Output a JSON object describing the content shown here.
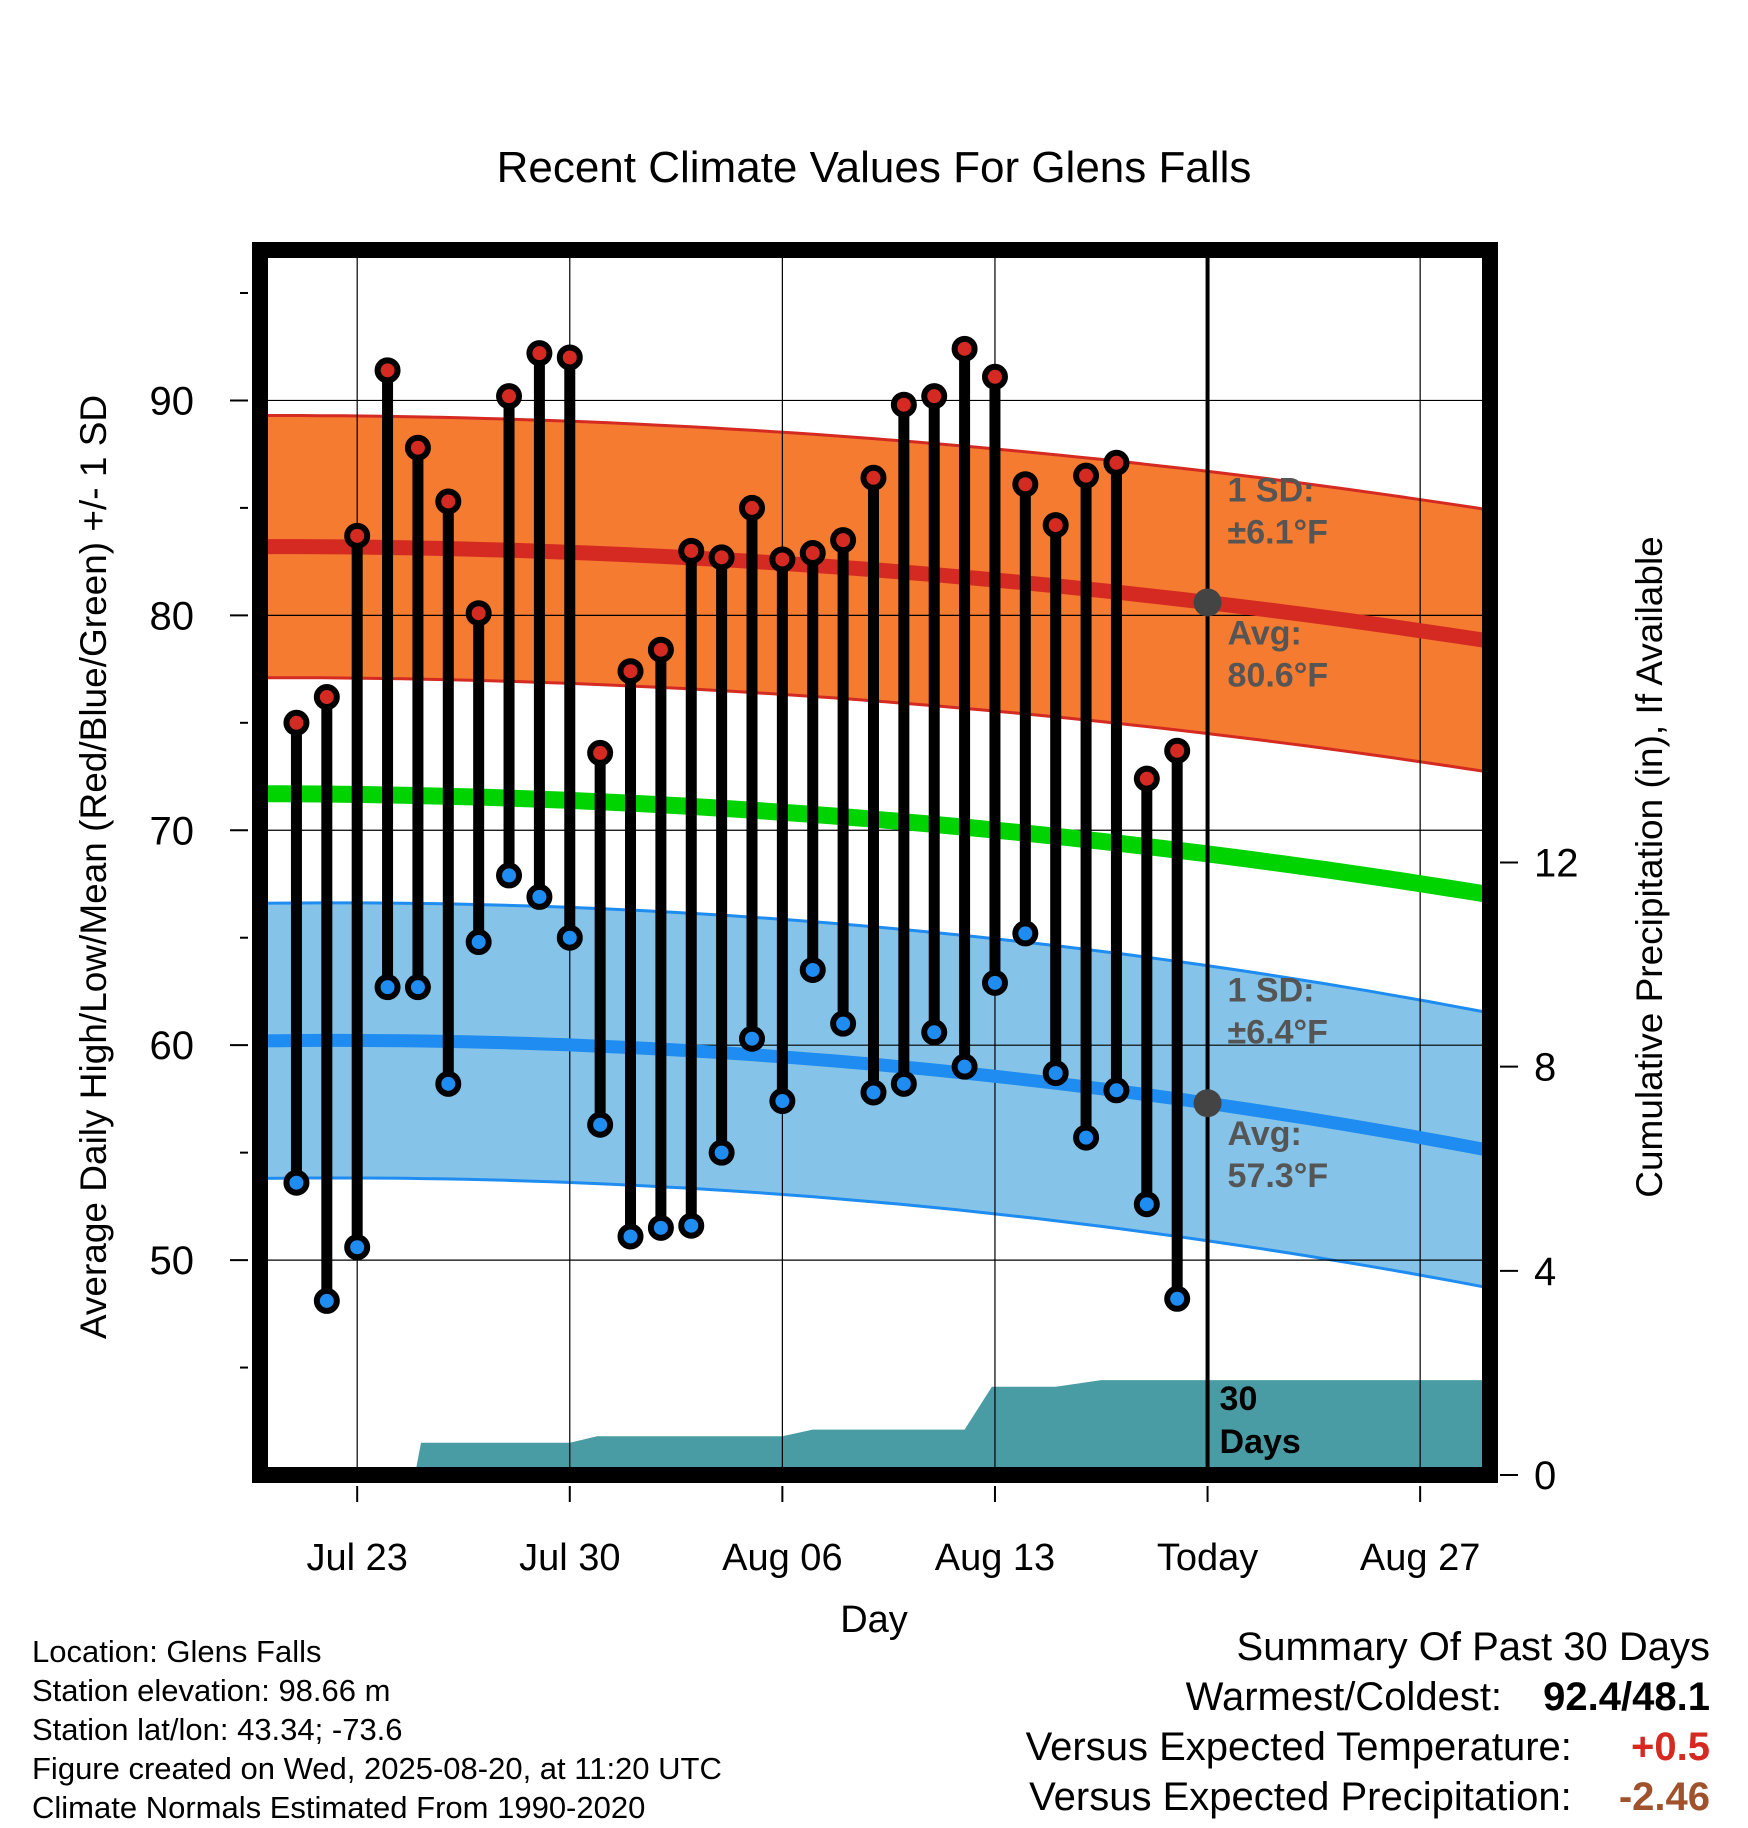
{
  "chart_data": {
    "type": "line",
    "title": "Recent Climate Values For Glens Falls",
    "xlabel": "Day",
    "ylabel": "Average Daily High/Low/Mean (Red/Blue/Green) +/- 1 SD",
    "y2label": "Cumulative Precipitation (in), If Available",
    "x_tick_labels": [
      "Jul 23",
      "Jul 30",
      "Aug 06",
      "Aug 13",
      "Today",
      "Aug 27"
    ],
    "x_tick_days": [
      0,
      7,
      14,
      21,
      28,
      35
    ],
    "x_range_days": [
      -3.2,
      37.3
    ],
    "ylim": [
      40,
      97
    ],
    "y_ticks": [
      50,
      60,
      70,
      80,
      90
    ],
    "y2lim": [
      0,
      24
    ],
    "y2_ticks": [
      0,
      4,
      8,
      12
    ],
    "grid": true,
    "colors": {
      "high_band": "#f47b30",
      "high_line": "#d42a22",
      "low_band": "#85c4e8",
      "low_line": "#1e8cf0",
      "mean_line": "#00d400",
      "precip": "#4a9ca4",
      "high_marker": "#d42a22",
      "low_marker": "#1e8cf0",
      "today_marker": "#444444"
    },
    "days": [
      -2,
      -1,
      0,
      1,
      2,
      3,
      4,
      5,
      6,
      7,
      8,
      9,
      10,
      11,
      12,
      13,
      14,
      15,
      16,
      17,
      18,
      19,
      20,
      21,
      22,
      23,
      24,
      25,
      26,
      27
    ],
    "daily_highs": [
      75.0,
      76.2,
      83.7,
      91.4,
      87.8,
      85.3,
      80.1,
      90.2,
      92.2,
      92.0,
      73.6,
      77.4,
      78.4,
      83.0,
      82.7,
      85.0,
      82.6,
      82.9,
      83.5,
      86.4,
      89.8,
      90.2,
      92.4,
      91.1,
      86.1,
      84.2,
      86.5,
      87.1,
      72.4,
      73.7
    ],
    "daily_lows": [
      53.6,
      48.1,
      50.6,
      62.7,
      62.7,
      58.2,
      64.8,
      67.9,
      66.9,
      65.0,
      56.3,
      51.1,
      51.5,
      51.6,
      55.0,
      60.3,
      57.4,
      63.5,
      61.0,
      57.8,
      58.2,
      60.6,
      59.0,
      62.9,
      65.2,
      58.7,
      55.7,
      57.9,
      52.6,
      48.2
    ],
    "normal_high": {
      "start_day": -3.2,
      "end_day": 37.3,
      "start": 83.2,
      "today": 80.6,
      "end": 78.8
    },
    "normal_low": {
      "start_day": -3.2,
      "end_day": 37.3,
      "start": 60.2,
      "today": 57.3,
      "end": 55.1
    },
    "normal_mean": {
      "start_day": -3.2,
      "end_day": 37.3,
      "start": 71.7,
      "today": 68.9,
      "end": 67.0
    },
    "high_sd": 6.1,
    "low_sd": 6.4,
    "cumulative_precip": {
      "days": [
        -3.2,
        0,
        0.5,
        1.9,
        2.1,
        7.0,
        7.9,
        8.1,
        14.0,
        15.0,
        20.0,
        20.9,
        22.0,
        23.0,
        24.5,
        27.0,
        37.3
      ],
      "values": [
        0.0,
        0.0,
        0.0,
        0.0,
        0.63,
        0.63,
        0.76,
        0.76,
        0.76,
        0.89,
        0.89,
        1.73,
        1.73,
        1.73,
        1.86,
        1.86,
        1.86
      ]
    },
    "annotations": {
      "high_sd_title": "1 SD:",
      "high_sd_text": "±6.1°F",
      "high_avg_title": "Avg:",
      "high_avg_text": "80.6°F",
      "low_sd_title": "1 SD:",
      "low_sd_text": "±6.4°F",
      "low_avg_title": "Avg:",
      "low_avg_text": "57.3°F",
      "days_number": "30",
      "days_word": "Days"
    }
  },
  "info": {
    "location": "Location: Glens Falls",
    "elevation": "Station elevation: 98.66 m",
    "latlon": "Station lat/lon: 43.34; -73.6",
    "created": "Figure created on Wed, 2025-08-20, at 11:20 UTC",
    "normals": "Climate Normals Estimated From 1990-2020"
  },
  "summary": {
    "title": "Summary Of Past 30 Days",
    "warm_cold_label": "Warmest/Coldest:",
    "warm_cold_value": "92.4/48.1",
    "temp_label": "Versus Expected Temperature:",
    "temp_value": "+0.5",
    "temp_color": "#d42a22",
    "precip_label": "Versus Expected Precipitation:",
    "precip_value": "-2.46",
    "precip_color": "#a0522d"
  }
}
